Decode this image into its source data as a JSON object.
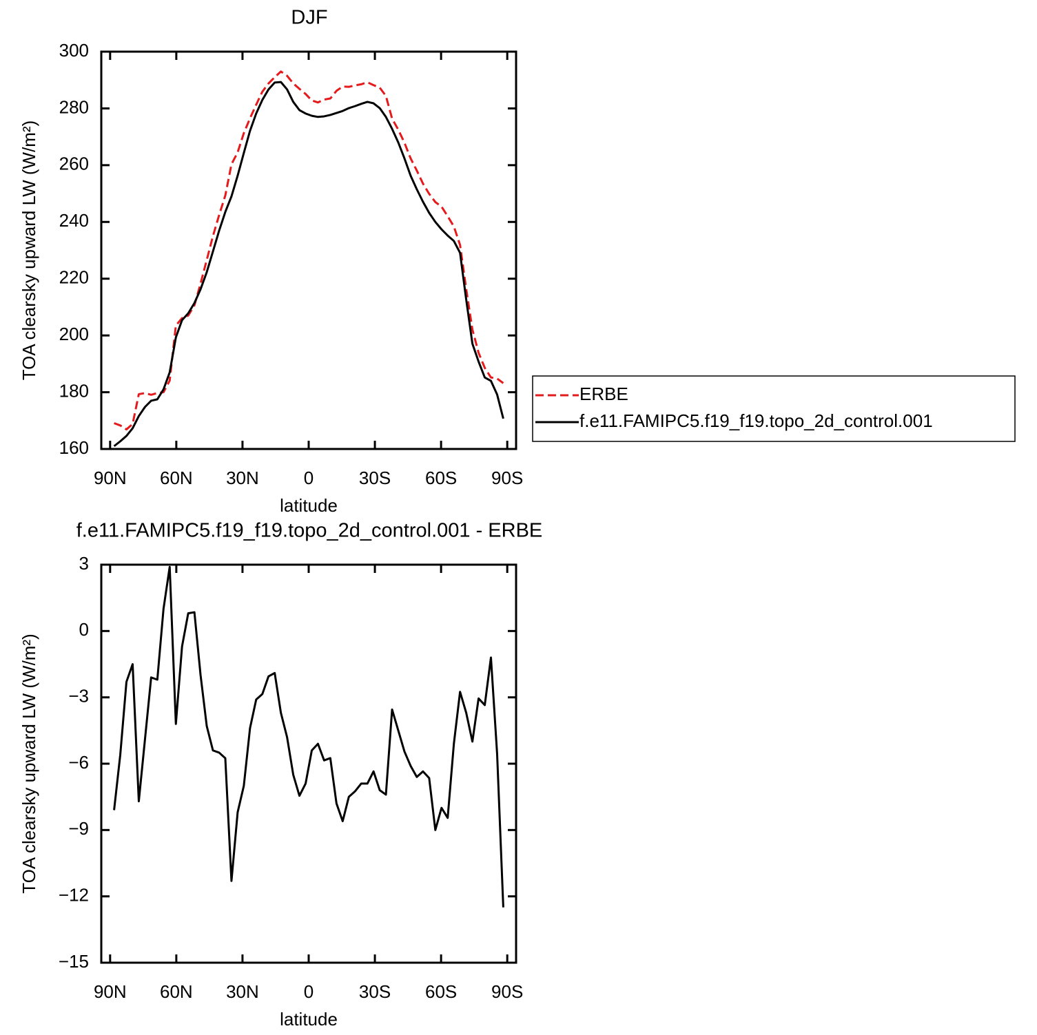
{
  "chart_data": [
    {
      "type": "line",
      "title": "DJF",
      "ylabel": "TOA clearsky upward LW (W/m²)",
      "xlabel": "latitude",
      "x": [
        88.2,
        85.4,
        82.6,
        79.8,
        77.0,
        74.2,
        71.4,
        68.6,
        65.8,
        63.0,
        60.2,
        57.4,
        54.6,
        51.8,
        49.0,
        46.2,
        43.4,
        40.6,
        37.8,
        35.0,
        32.2,
        29.4,
        26.6,
        23.8,
        21.0,
        18.2,
        15.4,
        12.6,
        9.8,
        7.0,
        4.2,
        1.4,
        -1.4,
        -4.2,
        -7.0,
        -9.8,
        -12.6,
        -15.4,
        -18.2,
        -21.0,
        -23.8,
        -26.6,
        -29.4,
        -32.2,
        -35.0,
        -37.8,
        -40.6,
        -43.4,
        -46.2,
        -49.0,
        -51.8,
        -54.6,
        -57.4,
        -60.2,
        -63.0,
        -65.8,
        -68.6,
        -71.4,
        -74.2,
        -77.0,
        -79.8,
        -82.6,
        -85.4,
        -88.2
      ],
      "series": [
        {
          "name": "ERBE",
          "color": "#e41a1c",
          "dash": true,
          "values": [
            169.1,
            168.3,
            166.9,
            168.8,
            179.3,
            179.7,
            179.1,
            179.7,
            180,
            184.1,
            203.5,
            206.1,
            207,
            210.6,
            218.3,
            226.6,
            235,
            242.4,
            249.3,
            260.3,
            264.5,
            271.3,
            276.5,
            281.3,
            285.9,
            288.8,
            291,
            293,
            291.5,
            288.8,
            286.9,
            285.1,
            282.8,
            282.1,
            283.1,
            283.5,
            286.2,
            287.7,
            287.6,
            288.1,
            288.5,
            289.2,
            288.2,
            287.3,
            284.4,
            276.4,
            272.5,
            267.9,
            262.4,
            258.1,
            253.5,
            249.9,
            247,
            245.4,
            242,
            238.4,
            231.9,
            216.3,
            202.1,
            193.9,
            188.6,
            185.2,
            184.8,
            183.2
          ]
        },
        {
          "name": "f.e11.FAMIPC5.f19_f19.topo_2d_control.001",
          "color": "#000000",
          "dash": false,
          "values": [
            161,
            162.7,
            164.6,
            167.3,
            171.6,
            174.8,
            177,
            177.5,
            181,
            187,
            199.3,
            205.4,
            207.8,
            211.4,
            216.3,
            222.3,
            229.6,
            236.9,
            243.5,
            249,
            256.3,
            264.3,
            272.1,
            278.2,
            283,
            286.7,
            289.1,
            289.3,
            286.7,
            282.3,
            279.4,
            278.2,
            277.4,
            277,
            277.2,
            277.7,
            278.4,
            279.1,
            280.1,
            280.8,
            281.6,
            282.3,
            281.8,
            280.1,
            277,
            272.8,
            268,
            262.4,
            256.3,
            251.5,
            247.1,
            243.2,
            240,
            237.4,
            235.2,
            233.3,
            229.1,
            212.6,
            197.1,
            190.8,
            185.2,
            184,
            179.2,
            170.7
          ]
        }
      ],
      "xlim": [
        94,
        -94
      ],
      "xticks": [
        {
          "value": 90,
          "label": "90N"
        },
        {
          "value": 60,
          "label": "60N"
        },
        {
          "value": 30,
          "label": "30N"
        },
        0,
        {
          "value": -30,
          "label": "30S"
        },
        {
          "value": -60,
          "label": "60S"
        },
        {
          "value": -90,
          "label": "90S"
        }
      ],
      "ylim": [
        160,
        300
      ],
      "yticks": [
        160,
        180,
        200,
        220,
        240,
        260,
        280,
        300
      ],
      "legend": "right"
    },
    {
      "type": "line",
      "title": "f.e11.FAMIPC5.f19_f19.topo_2d_control.001 - ERBE",
      "ylabel": "TOA clearsky upward LW (W/m²)",
      "xlabel": "latitude",
      "x": [
        88.2,
        85.4,
        82.6,
        79.8,
        77.0,
        74.2,
        71.4,
        68.6,
        65.8,
        63.0,
        60.2,
        57.4,
        54.6,
        51.8,
        49.0,
        46.2,
        43.4,
        40.6,
        37.8,
        35.0,
        32.2,
        29.4,
        26.6,
        23.8,
        21.0,
        18.2,
        15.4,
        12.6,
        9.8,
        7.0,
        4.2,
        1.4,
        -1.4,
        -4.2,
        -7.0,
        -9.8,
        -12.6,
        -15.4,
        -18.2,
        -21.0,
        -23.8,
        -26.6,
        -29.4,
        -32.2,
        -35.0,
        -37.8,
        -40.6,
        -43.4,
        -46.2,
        -49.0,
        -51.8,
        -54.6,
        -57.4,
        -60.2,
        -63.0,
        -65.8,
        -68.6,
        -71.4,
        -74.2,
        -77.0,
        -79.8,
        -82.6,
        -85.4,
        -88.2
      ],
      "series": [
        {
          "color": "#000000",
          "dash": false,
          "values": [
            -8.1,
            -5.6,
            -2.3,
            -1.5,
            -7.7,
            -4.9,
            -2.1,
            -2.2,
            1.0,
            2.9,
            -4.2,
            -0.7,
            0.8,
            0.85,
            -2.0,
            -4.3,
            -5.4,
            -5.5,
            -5.75,
            -11.3,
            -8.2,
            -7.0,
            -4.4,
            -3.1,
            -2.85,
            -2.05,
            -1.9,
            -3.7,
            -4.8,
            -6.5,
            -7.45,
            -6.9,
            -5.4,
            -5.1,
            -5.85,
            -5.75,
            -7.8,
            -8.6,
            -7.5,
            -7.25,
            -6.9,
            -6.9,
            -6.35,
            -7.2,
            -7.4,
            -3.55,
            -4.5,
            -5.45,
            -6.1,
            -6.6,
            -6.35,
            -6.65,
            -9.0,
            -8.0,
            -8.45,
            -5.1,
            -2.75,
            -3.7,
            -5.0,
            -3.05,
            -3.35,
            -1.2,
            -5.55,
            -12.5
          ]
        }
      ],
      "xlim": [
        94,
        -94
      ],
      "xticks": [
        {
          "value": 90,
          "label": "90N"
        },
        {
          "value": 60,
          "label": "60N"
        },
        {
          "value": 30,
          "label": "30N"
        },
        0,
        {
          "value": -30,
          "label": "30S"
        },
        {
          "value": -60,
          "label": "60S"
        },
        {
          "value": -90,
          "label": "90S"
        }
      ],
      "ylim": [
        -15,
        3
      ],
      "yticks": [
        {
          "value": -15,
          "label": "−15"
        },
        {
          "value": -12,
          "label": "−12"
        },
        {
          "value": -9,
          "label": "−9"
        },
        {
          "value": -6,
          "label": "−6"
        },
        {
          "value": -3,
          "label": "−3"
        },
        0,
        3
      ]
    }
  ]
}
